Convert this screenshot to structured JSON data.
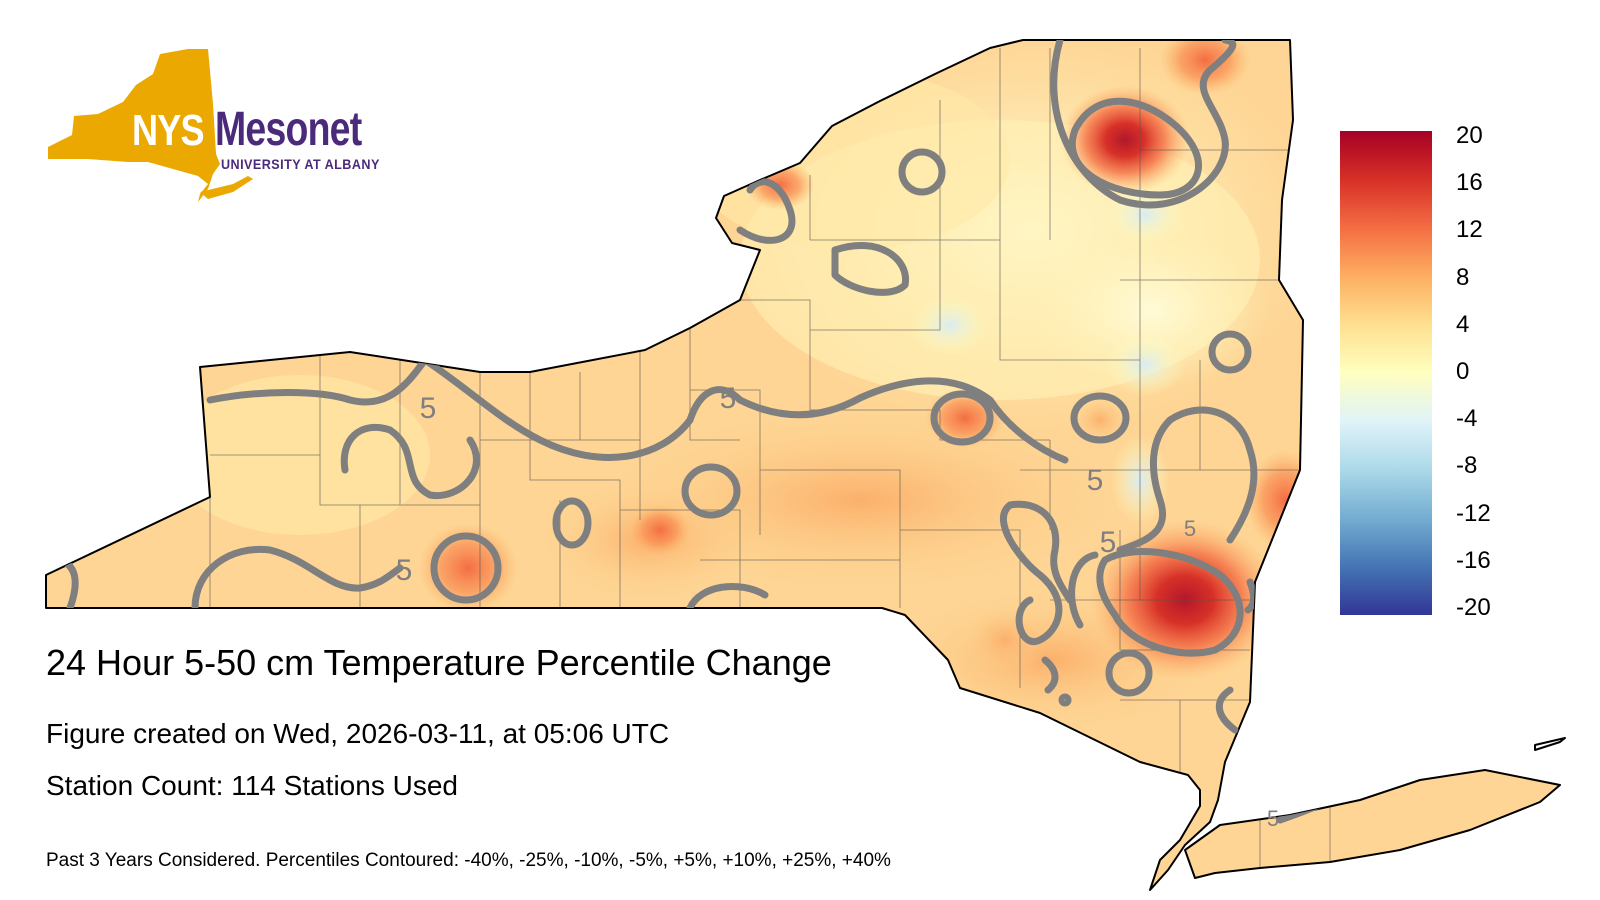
{
  "logo": {
    "nys": "NYS",
    "mesonet": "Mesonet",
    "university": "UNIVERSITY AT ALBANY",
    "gold_color": "#eaa800",
    "purple_color": "#4b2a7b"
  },
  "title": "24 Hour 5-50 cm Temperature Percentile Change",
  "created": "Figure created on Wed, 2026-03-11, at 05:06 UTC",
  "station_count": "Station Count: 114 Stations Used",
  "note": "Past 3 Years Considered. Percentiles Contoured: -40%, -25%, -10%, -5%, +5%, +10%, +25%, +40%",
  "contour_labels": [
    "5",
    "5",
    "5",
    "5",
    "5",
    "5",
    "5"
  ],
  "contour_color": "#7f7f7f",
  "legend": {
    "ticks": [
      "20",
      "16",
      "12",
      "8",
      "4",
      "0",
      "-4",
      "-8",
      "-12",
      "-16",
      "-20"
    ],
    "colors": [
      "#a50026",
      "#d73027",
      "#f46d43",
      "#fdae61",
      "#fee090",
      "#ffffbf",
      "#e0f3f8",
      "#abd9e9",
      "#74add1",
      "#4575b4",
      "#313695"
    ]
  }
}
